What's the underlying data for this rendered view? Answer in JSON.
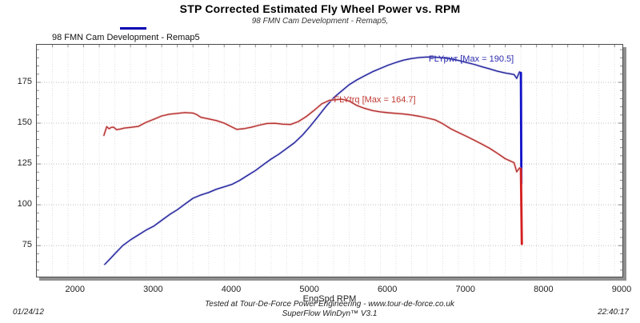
{
  "header": {
    "title": "STP Corrected Estimated Fly Wheel Power vs. RPM",
    "subtitle": "98 FMN Cam Development - Remap5,"
  },
  "legend": {
    "label": "98 FMN Cam Development - Remap5",
    "swatch_color": "#0000b0"
  },
  "footer": {
    "tested_at": "Tested at Tour-De-Force Power Engineering - www.tour-de-force.co.uk",
    "software": "SuperFlow WinDyn™ V3.1",
    "date": "01/24/12",
    "time": "22:40:17"
  },
  "chart_data": {
    "type": "line",
    "xlabel": "EngSpd RPM",
    "ylabel": "",
    "xlim": [
      1500,
      9000
    ],
    "ylim": [
      56,
      198
    ],
    "x_ticks": [
      2000,
      3000,
      4000,
      5000,
      6000,
      7000,
      8000,
      9000
    ],
    "y_ticks": [
      75,
      100,
      125,
      150,
      175
    ],
    "x_minor_step": 200,
    "y_minor_step": 5,
    "grid": {
      "major_color": "#bfbfbf",
      "minor_color": "#e0e0e0",
      "style": "dotted"
    },
    "legend_position": "top-left",
    "annotations": [
      {
        "text": "FLYpwr [Max = 190.5]",
        "color": "#2a2aae",
        "x": 6530,
        "y": 191.5
      },
      {
        "text": "FLYtrq [Max = 164.7]",
        "color": "#c03a34",
        "x": 5315,
        "y": 166.5
      }
    ],
    "series": [
      {
        "name": "FLYpwr",
        "max": 190.5,
        "color": "#24249c",
        "glow_color": "#c6c8ea",
        "end_color": "#1212c8",
        "points": [
          [
            2370,
            63.5
          ],
          [
            2430,
            66.5
          ],
          [
            2500,
            70
          ],
          [
            2600,
            75
          ],
          [
            2700,
            78.5
          ],
          [
            2800,
            81.5
          ],
          [
            2900,
            84.5
          ],
          [
            3000,
            87
          ],
          [
            3100,
            90.5
          ],
          [
            3200,
            94
          ],
          [
            3300,
            97
          ],
          [
            3400,
            100.5
          ],
          [
            3500,
            104
          ],
          [
            3600,
            106
          ],
          [
            3700,
            107.5
          ],
          [
            3800,
            109.5
          ],
          [
            3900,
            111
          ],
          [
            4000,
            112.5
          ],
          [
            4100,
            115
          ],
          [
            4200,
            118
          ],
          [
            4300,
            121
          ],
          [
            4400,
            124.5
          ],
          [
            4500,
            128
          ],
          [
            4600,
            131
          ],
          [
            4700,
            134.5
          ],
          [
            4800,
            138
          ],
          [
            4900,
            142.5
          ],
          [
            5000,
            148
          ],
          [
            5100,
            154
          ],
          [
            5200,
            160
          ],
          [
            5300,
            165.5
          ],
          [
            5400,
            169.5
          ],
          [
            5500,
            173.5
          ],
          [
            5600,
            176.5
          ],
          [
            5700,
            179
          ],
          [
            5800,
            181.5
          ],
          [
            5900,
            183.5
          ],
          [
            6000,
            185.5
          ],
          [
            6100,
            187.2
          ],
          [
            6200,
            188.6
          ],
          [
            6300,
            189.6
          ],
          [
            6400,
            190.2
          ],
          [
            6500,
            190.5
          ],
          [
            6600,
            190.4
          ],
          [
            6700,
            190
          ],
          [
            6800,
            189.4
          ],
          [
            6900,
            188.4
          ],
          [
            7000,
            187.2
          ],
          [
            7100,
            186
          ],
          [
            7200,
            184.6
          ],
          [
            7300,
            183.2
          ],
          [
            7400,
            181.8
          ],
          [
            7500,
            180.7
          ],
          [
            7613,
            179.8
          ],
          [
            7647,
            177.4
          ],
          [
            7682,
            181.4
          ],
          [
            7700,
            180.8
          ],
          [
            7706,
            113
          ]
        ]
      },
      {
        "name": "FLYtrq",
        "max": 164.7,
        "color": "#b23230",
        "glow_color": "#f2c0c0",
        "end_color": "#d41f1f",
        "points": [
          [
            2360,
            142.5
          ],
          [
            2395,
            147.8
          ],
          [
            2425,
            146.6
          ],
          [
            2455,
            147.4
          ],
          [
            2485,
            147.5
          ],
          [
            2520,
            146
          ],
          [
            2570,
            146.4
          ],
          [
            2620,
            147
          ],
          [
            2700,
            147.4
          ],
          [
            2800,
            148
          ],
          [
            2900,
            150.5
          ],
          [
            3000,
            152.4
          ],
          [
            3100,
            154.4
          ],
          [
            3200,
            155.5
          ],
          [
            3300,
            156
          ],
          [
            3400,
            156.5
          ],
          [
            3500,
            156.2
          ],
          [
            3550,
            155.2
          ],
          [
            3600,
            153.6
          ],
          [
            3700,
            152.6
          ],
          [
            3800,
            151.6
          ],
          [
            3900,
            150
          ],
          [
            4000,
            147.6
          ],
          [
            4060,
            146.2
          ],
          [
            4150,
            146.6
          ],
          [
            4250,
            147.5
          ],
          [
            4350,
            148.8
          ],
          [
            4450,
            149.8
          ],
          [
            4550,
            149.9
          ],
          [
            4650,
            149.4
          ],
          [
            4750,
            149.2
          ],
          [
            4850,
            151
          ],
          [
            4950,
            154
          ],
          [
            5050,
            157.8
          ],
          [
            5150,
            161.8
          ],
          [
            5250,
            164
          ],
          [
            5400,
            164.7
          ],
          [
            5500,
            163.6
          ],
          [
            5600,
            160.8
          ],
          [
            5700,
            159
          ],
          [
            5800,
            157.7
          ],
          [
            5900,
            156.9
          ],
          [
            6000,
            156.4
          ],
          [
            6100,
            156
          ],
          [
            6200,
            155.6
          ],
          [
            6300,
            155
          ],
          [
            6400,
            154.2
          ],
          [
            6500,
            153.2
          ],
          [
            6600,
            152
          ],
          [
            6700,
            149.6
          ],
          [
            6800,
            146.6
          ],
          [
            6900,
            144.3
          ],
          [
            7000,
            142
          ],
          [
            7100,
            139.6
          ],
          [
            7200,
            137.2
          ],
          [
            7300,
            134.6
          ],
          [
            7400,
            131.5
          ],
          [
            7500,
            128.2
          ],
          [
            7613,
            125.8
          ],
          [
            7647,
            120.2
          ],
          [
            7682,
            122.6
          ],
          [
            7700,
            122
          ],
          [
            7712,
            76
          ]
        ]
      }
    ]
  }
}
